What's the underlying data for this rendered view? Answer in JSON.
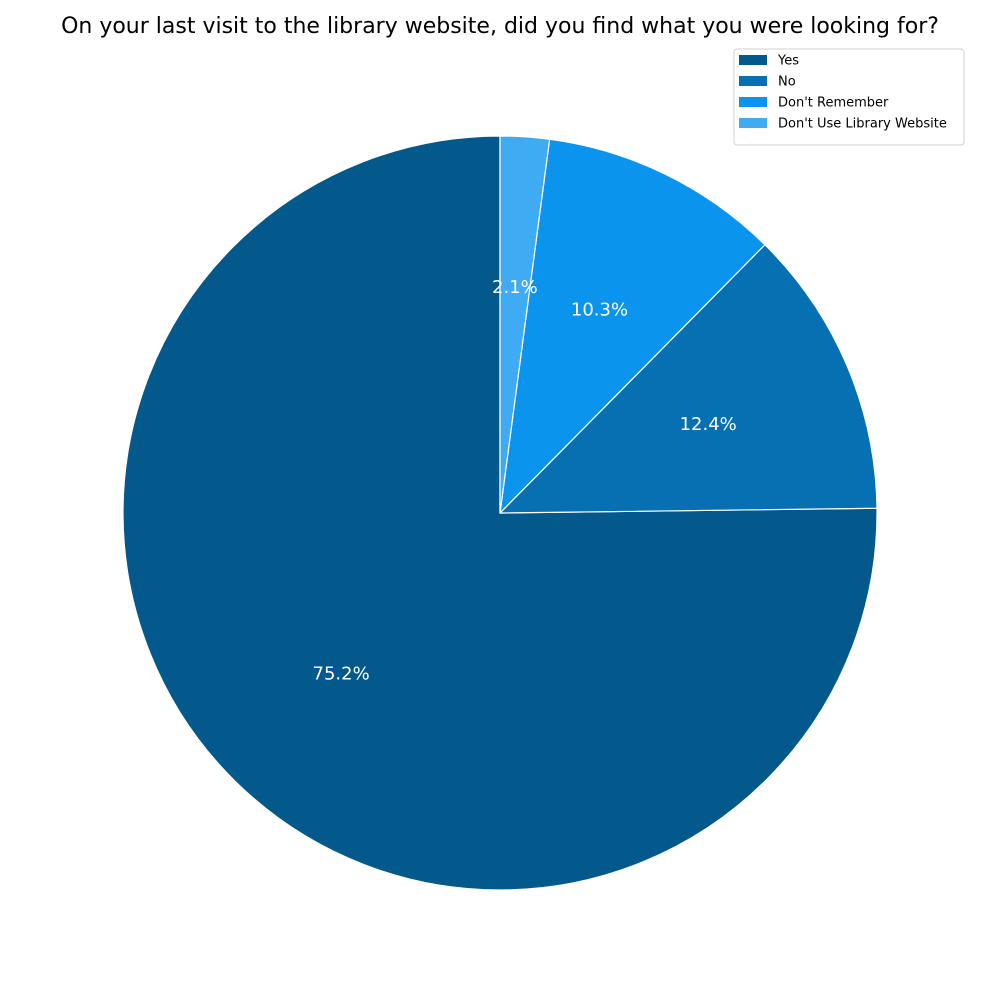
{
  "chart_data": {
    "type": "pie",
    "title": "On your last visit to the library website, did you find what you were looking for?",
    "categories": [
      "Yes",
      "No",
      "Don't Remember",
      "Don't Use Library Website"
    ],
    "values": [
      75.2,
      12.4,
      10.3,
      2.1
    ],
    "value_labels": [
      "75.2%",
      "12.4%",
      "10.3%",
      "2.1%"
    ],
    "colors": [
      "#03588C",
      "#0670B2",
      "#0B94ED",
      "#3EABF2"
    ],
    "start_angle_deg": 90,
    "direction": "counterclockwise",
    "legend": {
      "placement": "top-right",
      "entries": [
        "Yes",
        "No",
        "Don't Remember",
        "Don't Use Library Website"
      ]
    }
  }
}
